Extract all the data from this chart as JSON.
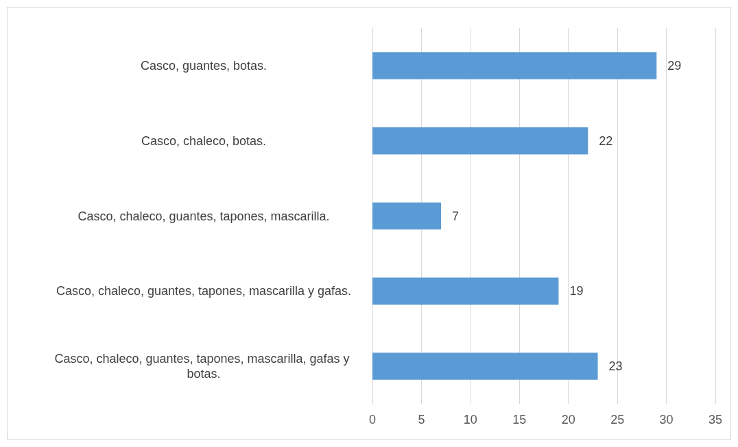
{
  "chart_data": {
    "type": "bar",
    "orientation": "horizontal",
    "categories": [
      "Casco, guantes, botas.",
      "Casco, chaleco, botas.",
      "Casco, chaleco, guantes, tapones, mascarilla.",
      "Casco, chaleco, guantes, tapones, mascarilla y gafas.",
      "Casco, chaleco, guantes, tapones, mascarilla, gafas y botas."
    ],
    "values": [
      29,
      22,
      7,
      19,
      23
    ],
    "color": "#5b9bd5",
    "xlim": [
      0,
      35
    ],
    "xticks": [
      0,
      5,
      10,
      15,
      20,
      25,
      30,
      35
    ],
    "grid": "x",
    "data_labels": true
  }
}
